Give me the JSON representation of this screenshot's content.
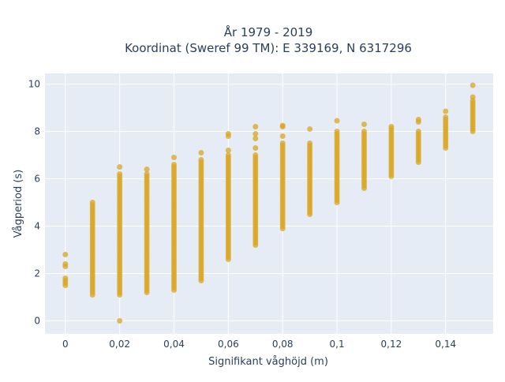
{
  "chart_data": {
    "type": "scatter",
    "title": [
      "År 1979 - 2019",
      "Koordinat (Sweref 99 TM): E 339169, N 6317296"
    ],
    "xlabel": "Signifikant våghöjd (m)",
    "ylabel": "Vågperiod (s)",
    "xlim": [
      -0.0075,
      0.1575
    ],
    "ylim": [
      -0.55,
      10.45
    ],
    "x_ticks": [
      {
        "value": 0,
        "label": "0"
      },
      {
        "value": 0.02,
        "label": "0,02"
      },
      {
        "value": 0.04,
        "label": "0,04"
      },
      {
        "value": 0.06,
        "label": "0,06"
      },
      {
        "value": 0.08,
        "label": "0,08"
      },
      {
        "value": 0.1,
        "label": "0,1"
      },
      {
        "value": 0.12,
        "label": "0,12"
      },
      {
        "value": 0.14,
        "label": "0,14"
      }
    ],
    "y_ticks": [
      {
        "value": 0,
        "label": "0"
      },
      {
        "value": 2,
        "label": "2"
      },
      {
        "value": 4,
        "label": "4"
      },
      {
        "value": 6,
        "label": "6"
      },
      {
        "value": 8,
        "label": "8"
      },
      {
        "value": 10,
        "label": "10"
      }
    ],
    "grid": true,
    "marker_color": "#daa520",
    "plot_background": "#e5ecf6",
    "columns": [
      {
        "x": 0,
        "y_min": 1.5,
        "y_max": 1.75,
        "outliers": [
          2.3,
          2.4,
          2.8
        ]
      },
      {
        "x": 0.01,
        "y_min": 1.1,
        "y_max": 5.0,
        "outliers": []
      },
      {
        "x": 0.02,
        "y_min": 1.1,
        "y_max": 6.2,
        "outliers": [
          0.0,
          6.5
        ]
      },
      {
        "x": 0.03,
        "y_min": 1.2,
        "y_max": 6.2,
        "outliers": [
          6.4
        ]
      },
      {
        "x": 0.04,
        "y_min": 1.3,
        "y_max": 6.6,
        "outliers": [
          6.9
        ]
      },
      {
        "x": 0.05,
        "y_min": 1.7,
        "y_max": 6.8,
        "outliers": [
          7.1
        ]
      },
      {
        "x": 0.06,
        "y_min": 2.6,
        "y_max": 7.0,
        "outliers": [
          7.2,
          7.8,
          7.9
        ]
      },
      {
        "x": 0.07,
        "y_min": 3.2,
        "y_max": 7.0,
        "outliers": [
          7.3,
          7.7,
          7.9,
          8.2
        ]
      },
      {
        "x": 0.08,
        "y_min": 3.9,
        "y_max": 7.5,
        "outliers": [
          7.8,
          8.2,
          8.25
        ]
      },
      {
        "x": 0.09,
        "y_min": 4.5,
        "y_max": 7.5,
        "outliers": [
          8.1
        ]
      },
      {
        "x": 0.1,
        "y_min": 5.0,
        "y_max": 8.0,
        "outliers": [
          8.45
        ]
      },
      {
        "x": 0.11,
        "y_min": 5.6,
        "y_max": 8.0,
        "outliers": [
          8.3
        ]
      },
      {
        "x": 0.12,
        "y_min": 6.1,
        "y_max": 8.2,
        "outliers": []
      },
      {
        "x": 0.13,
        "y_min": 6.7,
        "y_max": 8.0,
        "outliers": [
          8.4,
          8.5
        ]
      },
      {
        "x": 0.14,
        "y_min": 7.3,
        "y_max": 8.6,
        "outliers": [
          8.85
        ]
      },
      {
        "x": 0.15,
        "y_min": 8.0,
        "y_max": 9.3,
        "outliers": [
          9.45,
          9.95
        ]
      }
    ]
  }
}
